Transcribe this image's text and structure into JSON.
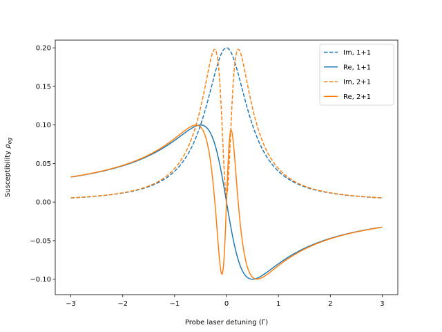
{
  "chart_data": {
    "type": "line",
    "xlabel": "Probe laser detuning (Γ)",
    "ylabel_main": "Susceptibility ",
    "ylabel_symbol": "ρ",
    "ylabel_subscript": "eg",
    "xlim": [
      -3.3,
      3.3
    ],
    "ylim": [
      -0.12,
      0.21
    ],
    "x_ticks": [
      -3,
      -2,
      -1,
      0,
      1,
      2,
      3
    ],
    "x_tick_labels": [
      "−3",
      "−2",
      "−1",
      "0",
      "1",
      "2",
      "3"
    ],
    "y_ticks": [
      -0.1,
      -0.05,
      0.0,
      0.05,
      0.1,
      0.15,
      0.2
    ],
    "y_tick_labels": [
      "−0.10",
      "−0.05",
      "0.00",
      "0.05",
      "0.10",
      "0.15",
      "0.20"
    ],
    "grid": false,
    "legend_position": "top-right",
    "x_range": [
      -3,
      3
    ],
    "series": [
      {
        "name": "Im, 1+1",
        "color": "#1f77b4",
        "style": "dashed",
        "model": {
          "kind": "single_im",
          "A": 0.2,
          "g": 0.5
        }
      },
      {
        "name": "Re, 1+1",
        "color": "#1f77b4",
        "style": "solid",
        "model": {
          "kind": "single_re",
          "A": 0.2,
          "g": 0.5
        }
      },
      {
        "name": "Im, 2+1",
        "color": "#ff7f0e",
        "style": "dashed",
        "model": {
          "kind": "eit_im",
          "A": 0.2,
          "g": 0.5,
          "W": 0.45,
          "gd": 0.005
        }
      },
      {
        "name": "Re, 2+1",
        "color": "#ff7f0e",
        "style": "solid",
        "model": {
          "kind": "eit_re",
          "A": 0.2,
          "g": 0.5,
          "W": 0.45,
          "gd": 0.005
        }
      }
    ]
  }
}
